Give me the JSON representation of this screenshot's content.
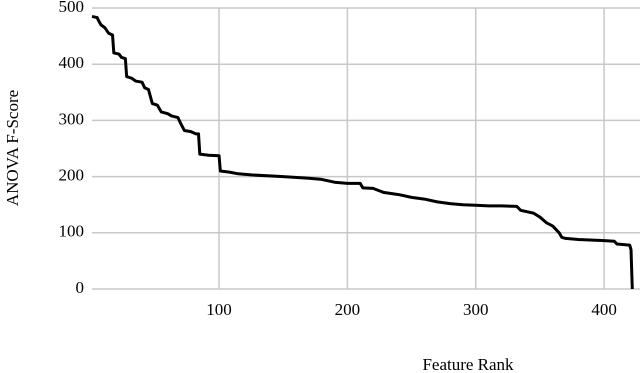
{
  "chart_data": {
    "type": "line",
    "x_label": "Feature Rank",
    "y_label": "ANOVA F-Score",
    "xlim": [
      1,
      428
    ],
    "xticks": [
      100,
      200,
      300,
      400
    ],
    "ylim": [
      0,
      500
    ],
    "yticks": [
      0,
      100,
      200,
      300,
      400,
      500
    ],
    "grid": true,
    "series": [
      {
        "color": "#000000",
        "x": [
          1,
          5,
          6,
          8,
          11,
          14,
          17,
          18,
          22,
          24,
          27,
          28,
          32,
          35,
          40,
          42,
          45,
          48,
          52,
          55,
          60,
          63,
          68,
          70,
          73,
          78,
          82,
          84,
          85,
          92,
          100,
          101,
          108,
          115,
          125,
          150,
          170,
          180,
          190,
          200,
          210,
          212,
          220,
          228,
          240,
          250,
          260,
          270,
          280,
          290,
          300,
          310,
          320,
          332,
          335,
          345,
          350,
          355,
          360,
          365,
          367,
          370,
          380,
          400,
          408,
          410,
          420,
          421,
          422
        ],
        "values": [
          485,
          483,
          478,
          470,
          465,
          455,
          452,
          420,
          418,
          412,
          410,
          378,
          375,
          370,
          368,
          358,
          355,
          330,
          327,
          315,
          312,
          308,
          305,
          295,
          282,
          280,
          276,
          276,
          240,
          238,
          237,
          210,
          208,
          205,
          203,
          200,
          197,
          195,
          190,
          188,
          188,
          180,
          179,
          172,
          168,
          163,
          160,
          155,
          152,
          150,
          149,
          148,
          148,
          147,
          140,
          135,
          128,
          118,
          112,
          100,
          92,
          90,
          88,
          86,
          85,
          80,
          78,
          70,
          0
        ]
      }
    ]
  }
}
